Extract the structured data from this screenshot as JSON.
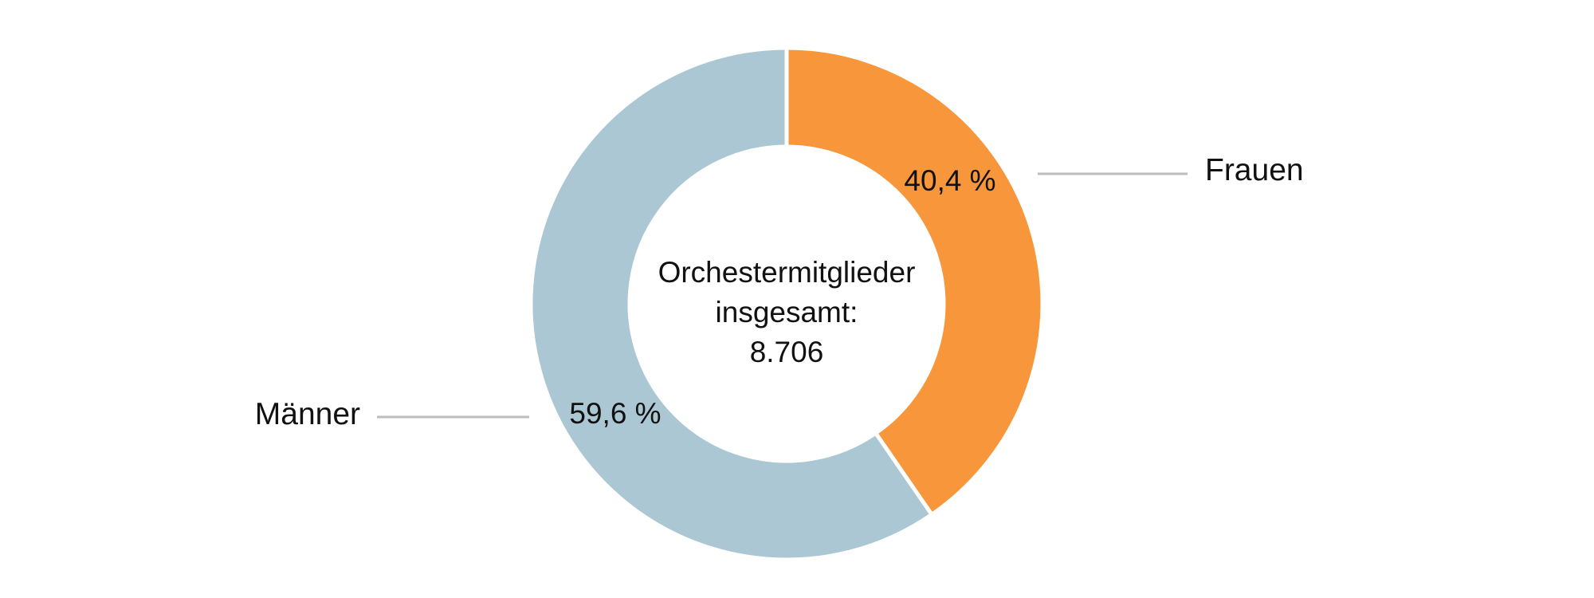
{
  "chart_data": {
    "type": "pie",
    "variant": "donut",
    "center_label": [
      "Orchestermitglieder",
      "insgesamt:",
      "8.706"
    ],
    "slices": [
      {
        "name": "Frauen",
        "value": 40.4,
        "value_label": "40,4 %",
        "color": "#f7963a"
      },
      {
        "name": "Männer",
        "value": 59.6,
        "value_label": "59,6 %",
        "color": "#abc7d3"
      }
    ],
    "start_angle_deg": 0,
    "direction": "clockwise"
  }
}
